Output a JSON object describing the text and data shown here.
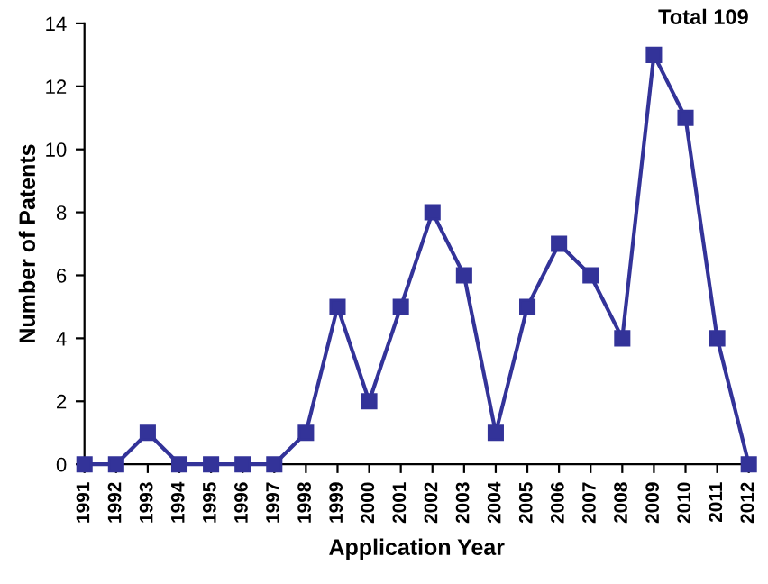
{
  "chart_data": {
    "type": "line",
    "xlabel": "Application Year",
    "ylabel": "Number of Patents",
    "annotations": [
      "Total 109"
    ],
    "categories": [
      "1991",
      "1992",
      "1993",
      "1994",
      "1995",
      "1996",
      "1997",
      "1998",
      "1999",
      "2000",
      "2001",
      "2002",
      "2003",
      "2004",
      "2005",
      "2006",
      "2007",
      "2008",
      "2009",
      "2010",
      "2011",
      "2012"
    ],
    "series": [
      {
        "color": "#333399",
        "values": [
          0,
          0,
          1,
          0,
          0,
          0,
          0,
          1,
          5,
          2,
          5,
          8,
          6,
          1,
          5,
          7,
          6,
          4,
          13,
          11,
          4,
          0
        ]
      }
    ],
    "ylim": [
      0,
      14
    ],
    "yticks": [
      0,
      2,
      4,
      6,
      8,
      10,
      12,
      14
    ],
    "marker": "square",
    "line_style": "solid",
    "grid": false,
    "legend": false
  }
}
